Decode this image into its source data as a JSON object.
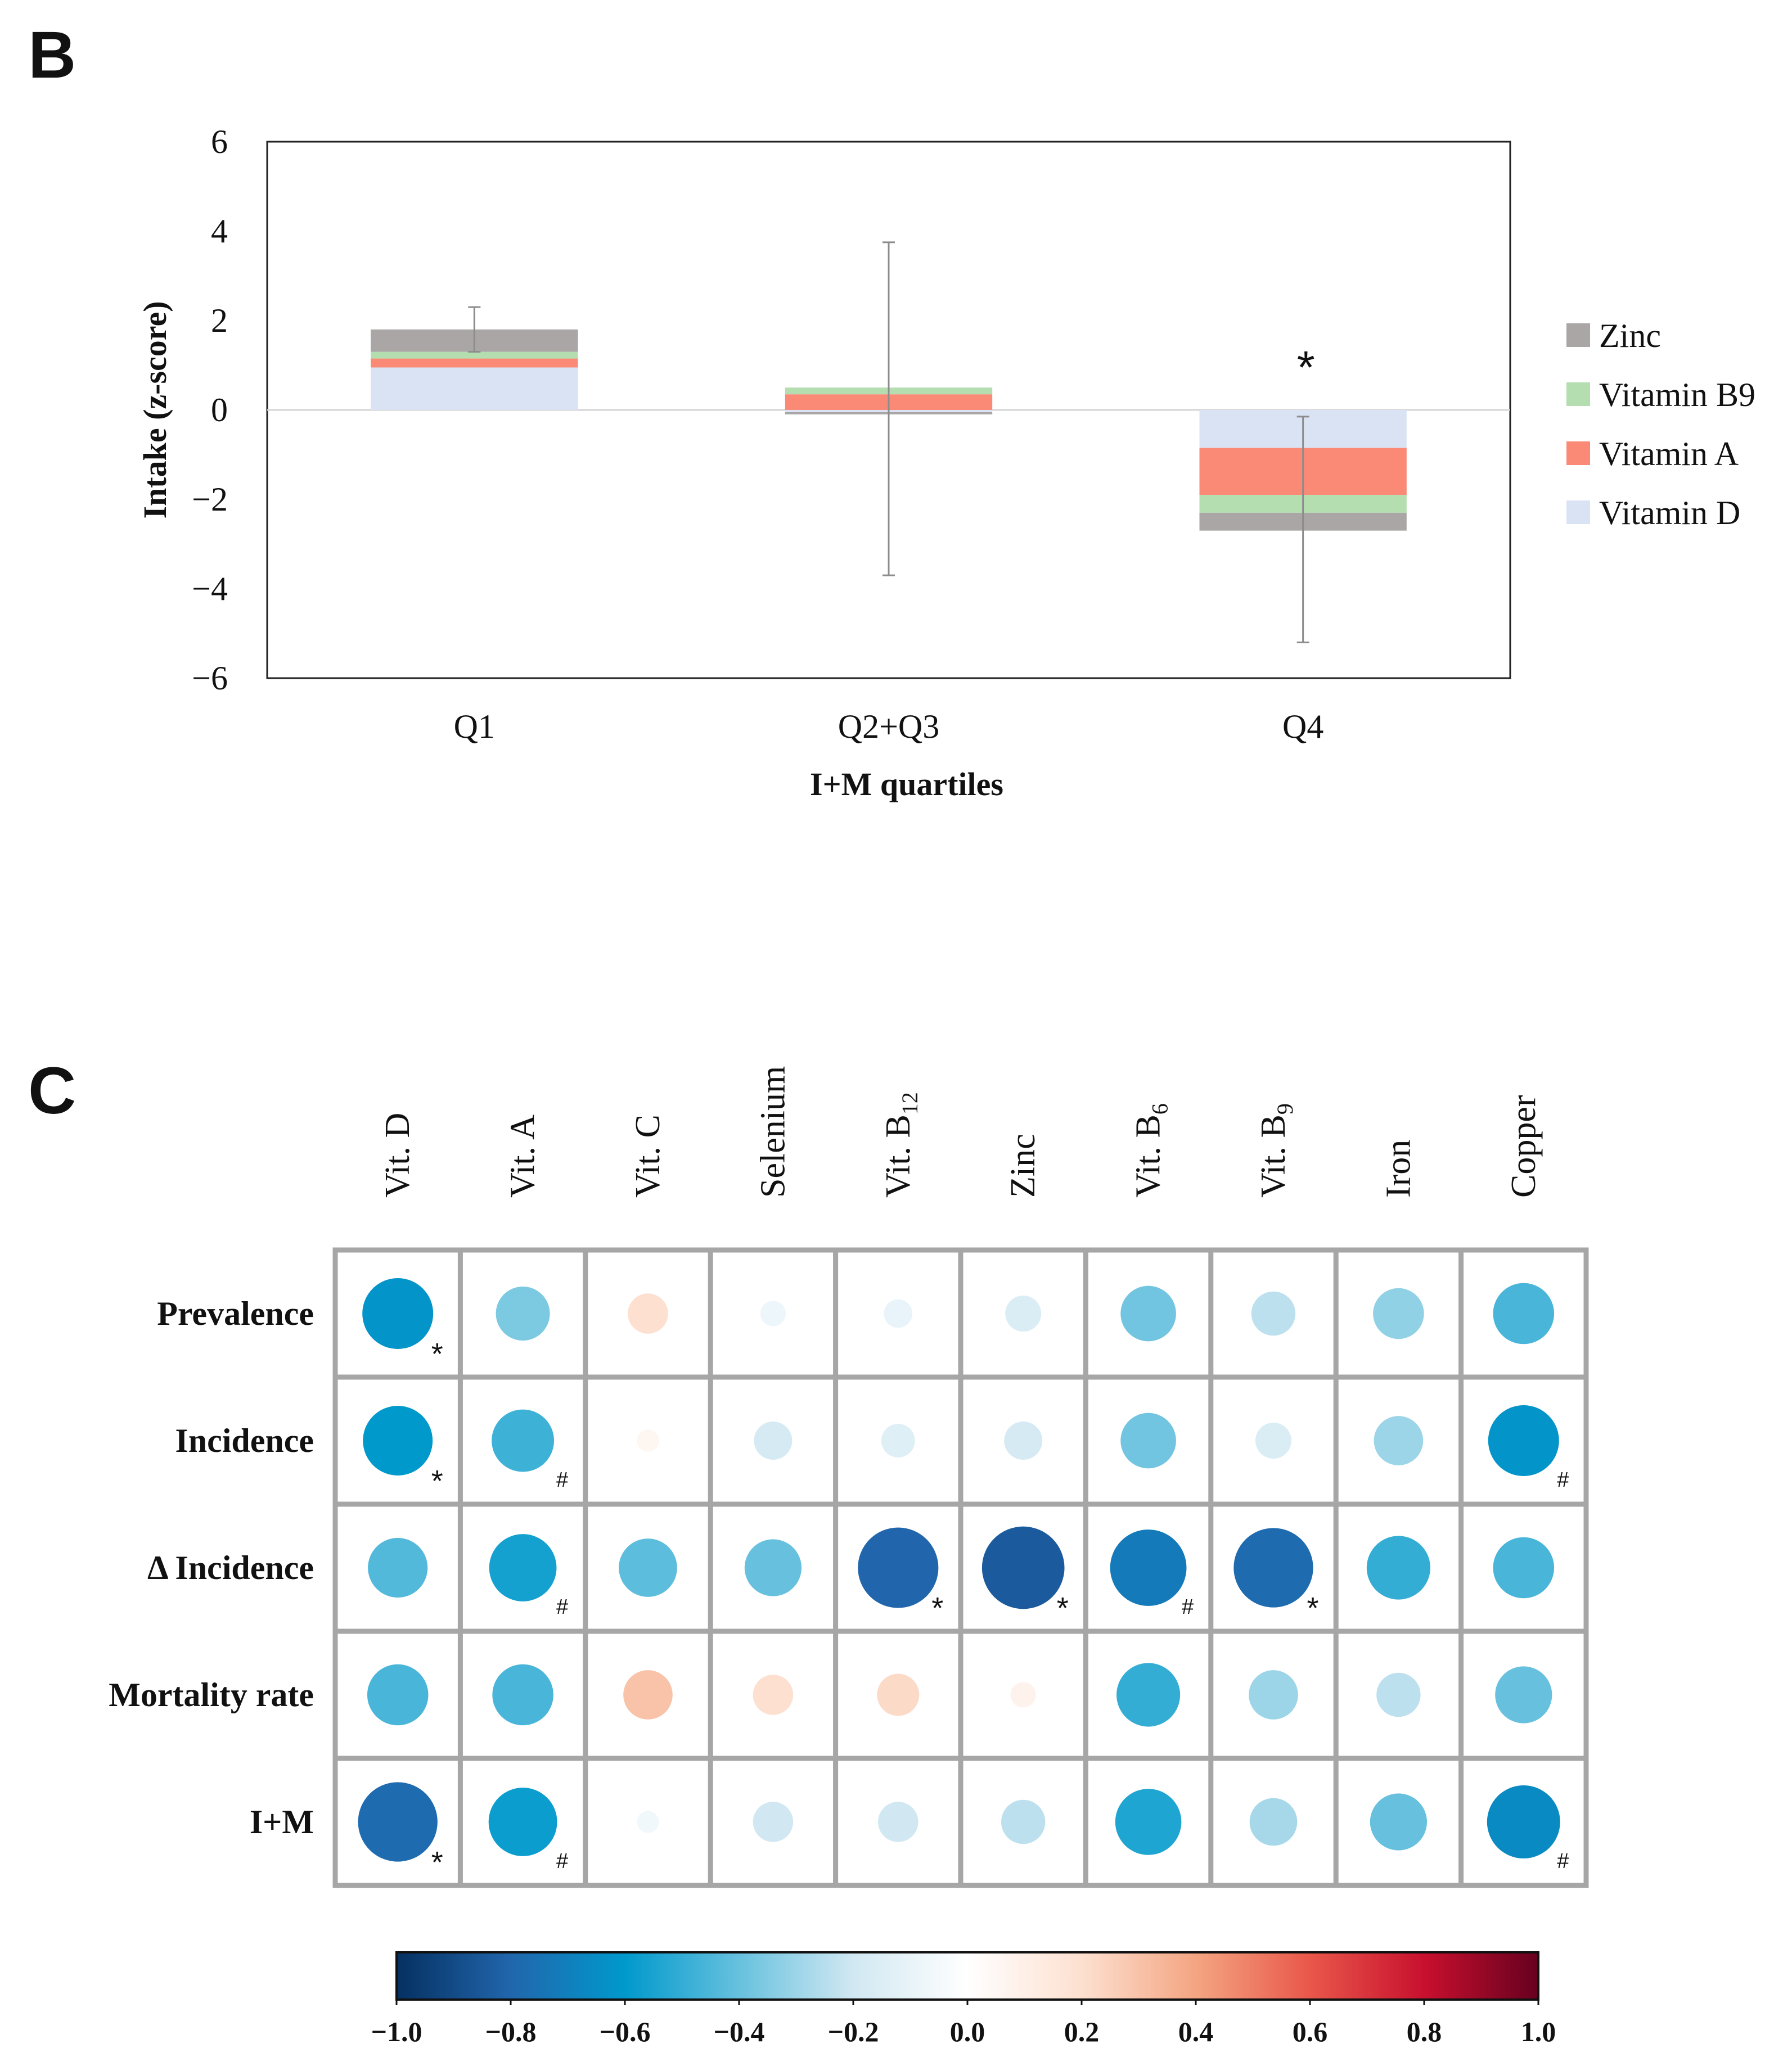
{
  "chart_data": [
    {
      "panel": "B",
      "type": "bar",
      "stacked": true,
      "title": "",
      "xlabel": "I+M quartiles",
      "ylabel": "Intake (z-score)",
      "ylim": [
        -6,
        6
      ],
      "yticks": [
        6,
        4,
        2,
        0,
        -2,
        -4,
        -6
      ],
      "ytick_labels": [
        "6",
        "4",
        "2",
        "0",
        "−2",
        "−4",
        "−6"
      ],
      "categories": [
        "Q1",
        "Q2+Q3",
        "Q4"
      ],
      "series": [
        {
          "name": "Vitamin D",
          "color": "#dae3f3",
          "values": [
            0.95,
            -0.05,
            -0.85
          ]
        },
        {
          "name": "Vitamin A",
          "color": "#fa8a76",
          "values": [
            0.2,
            0.35,
            -1.05
          ]
        },
        {
          "name": "Vitamin B9",
          "color": "#b4deb0",
          "values": [
            0.15,
            0.15,
            -0.4
          ]
        },
        {
          "name": "Zinc",
          "color": "#aaa6a6",
          "values": [
            0.5,
            -0.05,
            -0.4
          ]
        }
      ],
      "error_bars": [
        {
          "category": "Q1",
          "center": 1.8,
          "low": 1.3,
          "high": 2.3
        },
        {
          "category": "Q2+Q3",
          "center": 0.0,
          "low": -3.7,
          "high": 3.75
        },
        {
          "category": "Q4",
          "center": -2.7,
          "low": -5.2,
          "high": -0.15
        }
      ],
      "annotations": [
        {
          "category": "Q4",
          "text": "*",
          "y": 1.2
        }
      ],
      "legend": {
        "position": "right",
        "order": [
          "Zinc",
          "Vitamin B9",
          "Vitamin A",
          "Vitamin D"
        ]
      }
    },
    {
      "panel": "C",
      "type": "heatmap",
      "title": "",
      "columns": [
        {
          "base": "Vit. D",
          "sub": ""
        },
        {
          "base": "Vit. A",
          "sub": ""
        },
        {
          "base": "Vit. C",
          "sub": ""
        },
        {
          "base": "Selenium",
          "sub": ""
        },
        {
          "base": "Vit. B",
          "sub": "12"
        },
        {
          "base": "Zinc",
          "sub": ""
        },
        {
          "base": "Vit. B",
          "sub": "6"
        },
        {
          "base": "Vit. B",
          "sub": "9"
        },
        {
          "base": "Iron",
          "sub": ""
        },
        {
          "base": "Copper",
          "sub": ""
        }
      ],
      "rows": [
        "Prevalence",
        "Incidence",
        "Δ Incidence",
        "Mortality rate",
        "I+M"
      ],
      "values": [
        [
          -0.62,
          -0.36,
          0.2,
          -0.08,
          -0.1,
          -0.16,
          -0.38,
          -0.24,
          -0.32,
          -0.46
        ],
        [
          -0.6,
          -0.48,
          0.06,
          -0.18,
          -0.14,
          -0.18,
          -0.38,
          -0.16,
          -0.3,
          -0.62
        ],
        [
          -0.44,
          -0.56,
          -0.42,
          -0.4,
          -0.8,
          -0.84,
          -0.72,
          -0.78,
          -0.5,
          -0.46
        ],
        [
          -0.46,
          -0.46,
          0.3,
          0.2,
          0.22,
          0.08,
          -0.5,
          -0.3,
          -0.24,
          -0.4
        ],
        [
          -0.78,
          -0.58,
          -0.06,
          -0.2,
          -0.2,
          -0.24,
          -0.54,
          -0.28,
          -0.4,
          -0.66
        ]
      ],
      "marks": [
        [
          "*",
          "",
          "",
          "",
          "",
          "",
          "",
          "",
          "",
          ""
        ],
        [
          "*",
          "#",
          "",
          "",
          "",
          "",
          "",
          "",
          "",
          "#"
        ],
        [
          "",
          "#",
          "",
          "",
          "*",
          "*",
          "#",
          "*",
          "",
          ""
        ],
        [
          "",
          "",
          "",
          "",
          "",
          "",
          "",
          "",
          "",
          ""
        ],
        [
          "*",
          "#",
          "",
          "",
          "",
          "",
          "",
          "",
          "",
          "#"
        ]
      ],
      "colorbar": {
        "range": [
          -1.0,
          1.0
        ],
        "ticks": [
          "−1.0",
          "−0.8",
          "−0.6",
          "−0.4",
          "−0.2",
          "0.0",
          "0.2",
          "0.4",
          "0.6",
          "0.8",
          "1.0"
        ],
        "colors": [
          "#053061",
          "#2166ac",
          "#0099cc",
          "#67c1de",
          "#d1e8f2",
          "#ffffff",
          "#fde0d0",
          "#f4a582",
          "#e9574a",
          "#c8102e",
          "#67001f"
        ]
      }
    }
  ],
  "panel_labels": {
    "b": "B",
    "c": "C"
  }
}
